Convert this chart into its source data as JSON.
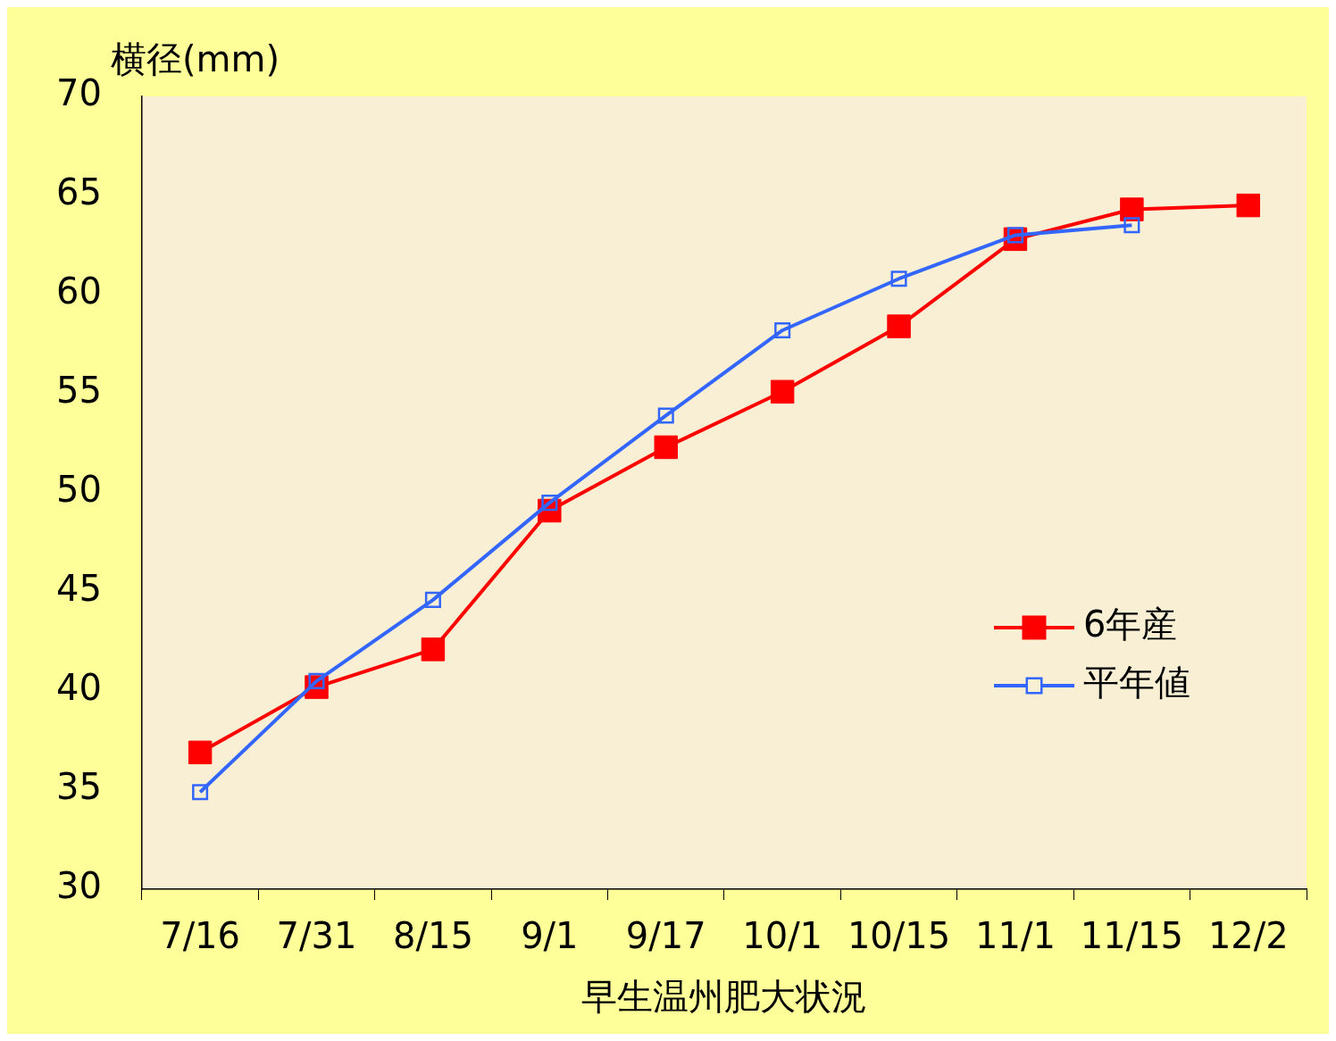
{
  "chart_data": {
    "type": "line",
    "ylabel": "横径(mm)",
    "xlabel": "早生温州肥大状況",
    "categories": [
      "7/16",
      "7/31",
      "8/15",
      "9/1",
      "9/17",
      "10/1",
      "10/15",
      "11/1",
      "11/15",
      "12/2"
    ],
    "series": [
      {
        "name": "6年産",
        "color": "#ff0000",
        "marker": "square",
        "values": [
          36.9,
          40.2,
          42.1,
          49.1,
          52.3,
          55.1,
          58.4,
          62.8,
          64.3,
          64.5
        ]
      },
      {
        "name": "平年値",
        "color": "#3366ff",
        "marker": "square",
        "values": [
          34.9,
          40.5,
          44.6,
          49.5,
          53.9,
          58.2,
          60.8,
          63.0,
          63.5,
          null
        ]
      }
    ],
    "ylim": [
      30,
      70
    ],
    "yticks": [
      30,
      35,
      40,
      45,
      50,
      55,
      60,
      65,
      70
    ],
    "grid": false,
    "legend": "right",
    "line_style": "solid"
  }
}
